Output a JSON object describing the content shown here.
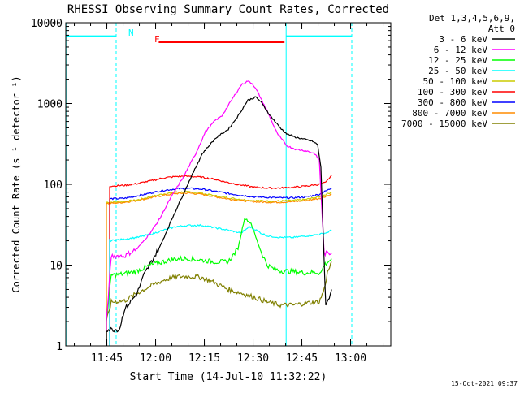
{
  "chart_data": {
    "type": "line",
    "title": "RHESSI Observing Summary Count Rates, Corrected",
    "xlabel": "Start Time (14-Jul-10 11:32:22)",
    "ylabel": "Corrected Count Rate (s⁻¹ detector⁻¹)",
    "yscale": "log",
    "ylim": [
      1,
      10000
    ],
    "xlim_min_after_start": [
      0,
      100
    ],
    "x_tick_labels": [
      "11:45",
      "12:00",
      "12:15",
      "12:30",
      "12:45",
      "13:00"
    ],
    "x_tick_min_after_start": [
      12.633,
      27.633,
      42.633,
      57.633,
      72.633,
      87.633
    ],
    "y_tick_labels": [
      "1",
      "10",
      "100",
      "1000",
      "10000"
    ],
    "y_tick_values": [
      1,
      10,
      100,
      1000,
      10000
    ],
    "legend_title": "Det 1,3,4,5,6,9,",
    "legend_subtitle": "Att 0",
    "legend_placement": "right",
    "annotations": {
      "night_label": "N",
      "flare_label": "F",
      "footer_date": "15-Oct-2021 09:37"
    },
    "bars": {
      "night_1": {
        "x0": 0,
        "x1": 15.5,
        "y": 6800,
        "color": "#00ffff"
      },
      "night_2": {
        "x0": 67.8,
        "x1": 88.0,
        "y": 6800,
        "color": "#00ffff"
      },
      "flare": {
        "x0": 28.6,
        "x1": 67.3,
        "y": 5800,
        "color": "#ff0000"
      }
    },
    "vlines": [
      {
        "x": 0.3,
        "style": "solid",
        "color": "#00ffff"
      },
      {
        "x": 15.5,
        "style": "dashed",
        "color": "#00ffff"
      },
      {
        "x": 67.8,
        "style": "solid",
        "color": "#00ffff"
      },
      {
        "x": 88.0,
        "style": "dashed",
        "color": "#00ffff"
      }
    ],
    "series": [
      {
        "name": "3 - 6 keV",
        "color": "#000000",
        "x": [
          12.5,
          16.5,
          18.0,
          22.0,
          24.0,
          29.0,
          33.0,
          38.0,
          42.0,
          46.0,
          50.0,
          53.0,
          56.0,
          58.5,
          60.0,
          63.0,
          66.0,
          68.0,
          71.0,
          73.5,
          76.0,
          77.5,
          78.5,
          80.0,
          81.8
        ],
        "y": [
          1.6,
          1.6,
          2.8,
          4.5,
          7.5,
          17,
          40,
          110,
          240,
          370,
          480,
          700,
          1100,
          1200,
          1050,
          700,
          500,
          420,
          380,
          360,
          340,
          310,
          160,
          3,
          5
        ]
      },
      {
        "name": "6 - 12 keV",
        "color": "#ff00ff",
        "x": [
          12.5,
          14.0,
          18.0,
          22.0,
          26.0,
          29.0,
          32.0,
          36.0,
          40.0,
          43.0,
          46.0,
          48.0,
          51.0,
          54.0,
          56.0,
          57.5,
          59.0,
          62.0,
          65.0,
          68.0,
          71.0,
          74.0,
          76.5,
          78.0,
          79.5,
          81.8
        ],
        "y": [
          2.0,
          13,
          13,
          16,
          25,
          38,
          65,
          120,
          240,
          450,
          620,
          700,
          1100,
          1700,
          1900,
          1750,
          1400,
          800,
          430,
          300,
          270,
          260,
          240,
          200,
          14,
          14
        ]
      },
      {
        "name": "12 - 25 keV",
        "color": "#00ff00",
        "x": [
          12.5,
          14.0,
          18.0,
          22.0,
          26.0,
          30.0,
          34.0,
          38.0,
          42.0,
          46.0,
          50.0,
          53.0,
          55.0,
          57.0,
          58.5,
          60.0,
          62.0,
          64.0,
          66.0,
          70.0,
          74.0,
          76.0,
          78.5,
          79.5,
          81.8
        ],
        "y": [
          2.0,
          7.5,
          7.8,
          8.5,
          10,
          11,
          12,
          12,
          11.5,
          11,
          11,
          16,
          38,
          33,
          22,
          15,
          10,
          9,
          8.5,
          8.3,
          8.0,
          8.2,
          8.0,
          10,
          12
        ]
      },
      {
        "name": "25 - 50 keV",
        "color": "#00ffff",
        "x": [
          13.5,
          18.0,
          22.0,
          26.0,
          30.0,
          34.0,
          38.0,
          42.0,
          46.0,
          50.0,
          54.0,
          56.5,
          58.0,
          60.0,
          62.0,
          66.0,
          70.0,
          74.0,
          78.0,
          80.0,
          81.8
        ],
        "y": [
          20,
          21,
          22,
          24,
          27,
          30,
          31,
          31,
          29,
          27,
          25,
          30,
          28,
          25,
          23,
          22,
          22,
          23,
          24,
          25,
          27
        ]
      },
      {
        "name": "50 - 100 keV",
        "color": "#cccc00",
        "x": [
          12.5,
          13.5,
          18.0,
          22.0,
          26.0,
          30.0,
          34.0,
          38.0,
          42.0,
          46.0,
          50.0,
          54.0,
          58.0,
          62.0,
          66.0,
          70.0,
          74.0,
          78.0,
          81.8
        ],
        "y": [
          60,
          60,
          61,
          64,
          70,
          76,
          80,
          80,
          77,
          72,
          68,
          65,
          63,
          62,
          62,
          63,
          65,
          70,
          80
        ]
      },
      {
        "name": "100 - 300 keV",
        "color": "#ff0000",
        "x": [
          13.5,
          18.0,
          22.0,
          26.0,
          30.0,
          34.0,
          38.0,
          42.0,
          46.0,
          50.0,
          54.0,
          58.0,
          62.0,
          66.0,
          70.0,
          74.0,
          78.0,
          80.0,
          81.8
        ],
        "y": [
          95,
          97,
          102,
          110,
          120,
          125,
          126,
          122,
          115,
          105,
          98,
          92,
          90,
          90,
          92,
          95,
          100,
          105,
          130
        ]
      },
      {
        "name": "300 - 800 keV",
        "color": "#0000ff",
        "x": [
          13.5,
          18.0,
          22.0,
          26.0,
          30.0,
          34.0,
          38.0,
          42.0,
          46.0,
          50.0,
          54.0,
          58.0,
          62.0,
          66.0,
          70.0,
          74.0,
          78.0,
          81.8
        ],
        "y": [
          66,
          67,
          72,
          78,
          84,
          88,
          89,
          87,
          82,
          77,
          73,
          70,
          69,
          68,
          68,
          70,
          75,
          90
        ]
      },
      {
        "name": "800 - 7000 keV",
        "color": "#ff8c00",
        "x": [
          12.5,
          13.5,
          18.0,
          22.0,
          26.0,
          30.0,
          34.0,
          38.0,
          42.0,
          46.0,
          50.0,
          54.0,
          58.0,
          62.0,
          66.0,
          70.0,
          74.0,
          78.0,
          81.8
        ],
        "y": [
          58,
          58,
          60,
          63,
          68,
          73,
          77,
          78,
          75,
          70,
          66,
          63,
          61,
          60,
          60,
          61,
          63,
          67,
          75
        ]
      },
      {
        "name": "7000 - 15000 keV",
        "color": "#808000",
        "x": [
          12.5,
          14.0,
          18.0,
          22.0,
          26.0,
          30.0,
          34.0,
          38.0,
          42.0,
          46.0,
          50.0,
          54.0,
          58.0,
          62.0,
          66.0,
          70.0,
          74.0,
          78.0,
          79.5,
          80.5,
          81.8
        ],
        "y": [
          2.0,
          3.5,
          3.6,
          4.5,
          5.5,
          6.5,
          7.2,
          7.3,
          7.0,
          6.0,
          5.0,
          4.5,
          4.0,
          3.5,
          3.2,
          3.2,
          3.4,
          3.5,
          5,
          8,
          11
        ]
      }
    ]
  }
}
